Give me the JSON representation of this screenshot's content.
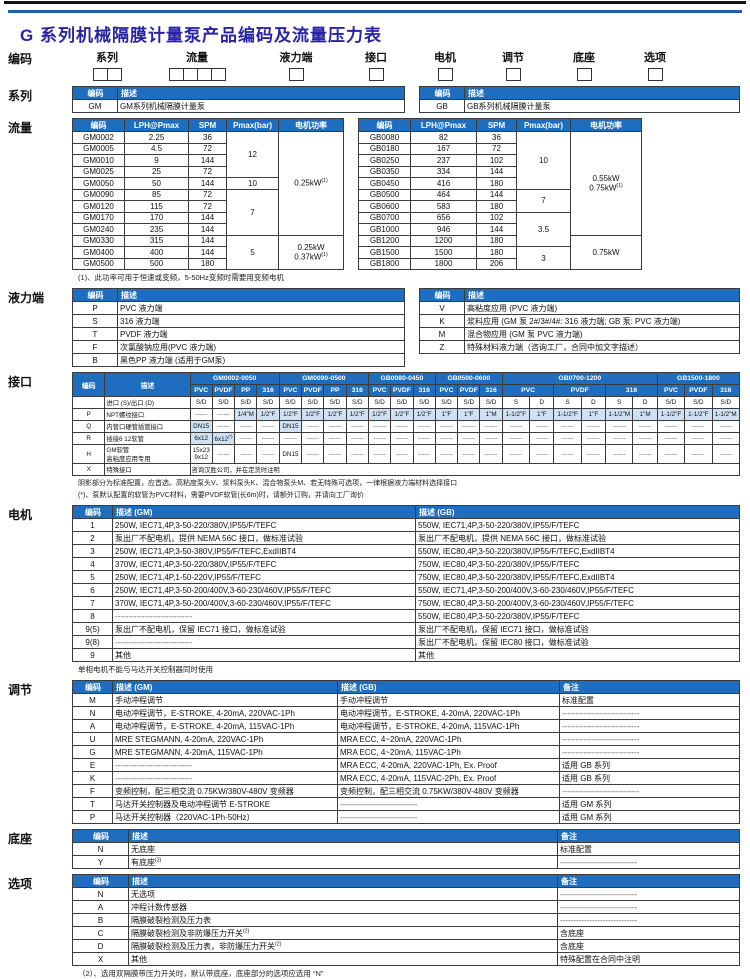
{
  "colors": {
    "header_blue": "#1E6DBF",
    "shade_blue": "#CFE2F4",
    "title_navy": "#2823A6",
    "rule_blue": "#1E5FAE"
  },
  "page": {
    "title": "G 系列机械隔膜计量泵产品编码及流量压力表",
    "top_code": {
      "label": "编码",
      "groups": [
        {
          "label": "系列",
          "boxes": 2
        },
        {
          "label": "流量",
          "boxes": 4
        },
        {
          "label": "液力端",
          "boxes": 1
        },
        {
          "label": "接口",
          "boxes": 1
        },
        {
          "label": "电机",
          "boxes": 1
        },
        {
          "label": "调节",
          "boxes": 1
        },
        {
          "label": "底座",
          "boxes": 1
        },
        {
          "label": "选项",
          "boxes": 1
        }
      ]
    }
  },
  "sections": {
    "series": {
      "label": "系列",
      "gm": {
        "head": [
          [
            "编码",
            "描述"
          ]
        ],
        "rows": [
          [
            "GM",
            "GM系列机械隔膜计量泵"
          ]
        ]
      },
      "gb": {
        "head": [
          [
            "编码",
            "描述"
          ]
        ],
        "rows": [
          [
            "GB",
            "GB系列机械隔膜计量泵"
          ]
        ]
      }
    },
    "flow": {
      "label": "流量",
      "note": "(1)、此功率可用于恒速或变频，5-50Hz变频时需要用变频电机",
      "gm": {
        "head": [
          [
            "编码",
            "LPH@Pmax",
            "SPM",
            "Pmax(bar)",
            "电机功率"
          ]
        ],
        "rows": [
          [
            "GM0002",
            "2.25",
            "36",
            {
              "t": "12",
              "rs": 4
            },
            {
              "t": "0.25kW",
              "sup": "(1)",
              "rs": 9
            }
          ],
          [
            "GM0005",
            "4.5",
            "72"
          ],
          [
            "GM0010",
            "9",
            "144"
          ],
          [
            "GM0025",
            "25",
            "72"
          ],
          [
            "GM0050",
            "50",
            "144",
            "10"
          ],
          [
            "GM0090",
            "85",
            "72",
            {
              "t": "7",
              "rs": 4
            }
          ],
          [
            "GM0120",
            "115",
            "72"
          ],
          [
            "GM0170",
            "170",
            "144"
          ],
          [
            "GM0240",
            "235",
            "144"
          ],
          [
            "GM0330",
            "315",
            "144",
            {
              "t": "5",
              "rs": 3
            },
            {
              "rs": 3,
              "lines": [
                {
                  "t": "0.25kW"
                },
                {
                  "t": "0.37kW",
                  "sup": "(1)"
                }
              ]
            }
          ],
          [
            "GM0400",
            "400",
            "144"
          ],
          [
            "GM0500",
            "500",
            "180"
          ]
        ]
      },
      "gb": {
        "head": [
          [
            "编码",
            "LPH@Pmax",
            "SPM",
            "Pmax(bar)",
            "电机功率"
          ]
        ],
        "rows": [
          [
            "GB0080",
            "82",
            "36",
            {
              "t": "10",
              "rs": 5
            },
            {
              "rs": 9,
              "lines": [
                {
                  "t": "0.55kW"
                },
                {
                  "t": "0.75kW",
                  "sup": "(1)"
                }
              ]
            }
          ],
          [
            "GB0180",
            "167",
            "72"
          ],
          [
            "GB0250",
            "237",
            "102"
          ],
          [
            "GB0350",
            "334",
            "144"
          ],
          [
            "GB0450",
            "416",
            "180"
          ],
          [
            "GB0500",
            "464",
            "144",
            {
              "t": "7",
              "rs": 2
            }
          ],
          [
            "GB0600",
            "583",
            "180"
          ],
          [
            "GB0700",
            "656",
            "102",
            {
              "t": "3.5",
              "rs": 3
            }
          ],
          [
            "GB1000",
            "946",
            "144"
          ],
          [
            "GB1200",
            "1200",
            "180",
            {
              "t": "0.75kW",
              "rs": 3
            }
          ],
          [
            "GB1500",
            "1500",
            "180",
            {
              "t": "3",
              "rs": 2
            }
          ],
          [
            "GB1800",
            "1800",
            "206"
          ]
        ]
      }
    },
    "hydraulic": {
      "label": "液力端",
      "gm": {
        "head": [
          [
            "编码",
            "描述"
          ]
        ],
        "rows": [
          [
            "P",
            "PVC 液力端"
          ],
          [
            "S",
            "316 液力端"
          ],
          [
            "T",
            "PVDF 液力端"
          ],
          [
            "F",
            "次氯酸钠应用(PVC 液力端)"
          ],
          [
            "B",
            "黑色PP 液力端 (适用于GM泵)"
          ]
        ]
      },
      "gb": {
        "head": [
          [
            "编码",
            "描述"
          ]
        ],
        "rows": [
          [
            "V",
            "高粘度应用 (PVC 液力端)"
          ],
          [
            "K",
            "浆料应用 (GM 泵 2#/3#/4#: 316 液力端; GB 泵: PVC 液力端)"
          ],
          [
            "M",
            "混合物应用 (GM 泵 PVC 液力端)"
          ],
          [
            "Z",
            "特殊材料液力端（咨询工厂，合同中加文字描述）"
          ]
        ]
      }
    },
    "interface": {
      "label": "接口",
      "note1": "阴影部分为标准配置，应首选。高粘度泵头V、浆料泵头K、混合物泵头M、若无特殊可选项，一律根据液力端材料选择接口",
      "note2": "(*)、泵默认配置的软管为PVC材料，需要PVDF软管(长6m)时，请额外订购，并请向工厂询价",
      "table": {
        "head": [
          [
            {
              "t": "编码",
              "rs": 2
            },
            {
              "t": "描述",
              "rs": 2
            },
            {
              "t": "GM0002-0050",
              "cs": 4
            },
            {
              "t": "GM0090-0500",
              "cs": 4
            },
            {
              "t": "GB0080-0450",
              "cs": 3
            },
            {
              "t": "GB0500-0600",
              "cs": 3
            },
            {
              "t": "GB0700-1200",
              "cs": 6
            },
            {
              "t": "GB1500-1800",
              "cs": 3
            }
          ],
          [
            "PVC",
            "PVDF",
            "PP",
            "316",
            "PVC",
            "PVDF",
            "PP",
            "316",
            "PVC",
            "PVDF",
            "316",
            "PVC",
            "PVDF",
            "316",
            {
              "t": "PVC",
              "cs": 2
            },
            {
              "t": "PVDF",
              "cs": 2
            },
            {
              "t": "316",
              "cs": 2
            },
            "PVC",
            "PVDF",
            "316"
          ]
        ],
        "rows": [
          [
            "",
            {
              "t": "进口 (S)/出口 (D)",
              "cls": "left"
            },
            "S/D",
            "S/D",
            "S/D",
            "S/D",
            "S/D",
            "S/D",
            "S/D",
            "S/D",
            "S/D",
            "S/D",
            "S/D",
            "S/D",
            "S/D",
            "S/D",
            "S",
            "D",
            "S",
            "D",
            "S",
            "D",
            "S/D",
            "S/D",
            "S/D"
          ],
          [
            "P",
            {
              "t": "NPT螺纹接口",
              "cls": "left"
            },
            "------",
            "------",
            {
              "t": "1/4\"M",
              "sh": 1
            },
            {
              "t": "1/2\"F",
              "sh": 1
            },
            {
              "t": "1/2\"F",
              "sh": 1
            },
            {
              "t": "1/2\"F",
              "sh": 1
            },
            {
              "t": "1/2\"F",
              "sh": 1
            },
            {
              "t": "1/2\"F",
              "sh": 1
            },
            {
              "t": "1/2\"F",
              "sh": 1
            },
            {
              "t": "1/2\"F",
              "sh": 1
            },
            {
              "t": "1/2\"F",
              "sh": 1
            },
            {
              "t": "1\"F",
              "sh": 1
            },
            {
              "t": "1\"F",
              "sh": 1
            },
            {
              "t": "1\"M",
              "sh": 1
            },
            {
              "t": "1-1/2\"F",
              "sh": 1
            },
            {
              "t": "1\"F",
              "sh": 1
            },
            {
              "t": "1-1/2\"F",
              "sh": 1
            },
            {
              "t": "1\"F",
              "sh": 1
            },
            {
              "t": "1-1/2\"M",
              "sh": 1
            },
            {
              "t": "1\"M",
              "sh": 1
            },
            {
              "t": "1-1/2\"F",
              "sh": 1
            },
            {
              "t": "1-1/2\"F",
              "sh": 1
            },
            {
              "t": "1-1/2\"M",
              "sh": 1
            }
          ],
          [
            "Q",
            {
              "t": "内管口硬管插管接口",
              "cls": "left"
            },
            {
              "t": "DN15",
              "sh": 1
            },
            "------",
            "------",
            "------",
            {
              "t": "DN15",
              "sh": 1
            },
            "------",
            "------",
            "------",
            "------",
            "------",
            "------",
            "------",
            "------",
            "------",
            "------",
            "------",
            "------",
            "------",
            "------",
            "------",
            "------",
            "------",
            "------"
          ],
          [
            "R",
            {
              "t": "插接6 12软管",
              "cls": "left"
            },
            {
              "t": "6x12",
              "sh": 1
            },
            {
              "t": "6x12",
              "sup": "(*)",
              "sh": 1
            },
            "------",
            "------",
            "------",
            "------",
            "------",
            "------",
            "------",
            "------",
            "------",
            "------",
            "------",
            "------",
            "------",
            "------",
            "------",
            "------",
            "------",
            "------",
            "------",
            "------",
            "------"
          ],
          [
            "H",
            {
              "cls": "left",
              "lines": [
                {
                  "t": "GM软管"
                },
                {
                  "t": "高粘度应用专用"
                }
              ]
            },
            {
              "lines": [
                {
                  "t": "15x23"
                },
                {
                  "t": "9x12"
                }
              ]
            },
            "------",
            "------",
            "------",
            "DN15",
            "------",
            "------",
            "------",
            "------",
            "------",
            "------",
            "------",
            "------",
            "------",
            "------",
            "------",
            "------",
            "------",
            "------",
            "------",
            "------",
            "------",
            "------"
          ],
          [
            "X",
            {
              "t": "特殊接口",
              "cls": "left"
            },
            {
              "t": "咨询汉胜公司，并在定货时注明",
              "cs": 23,
              "cls": "left"
            }
          ]
        ]
      }
    },
    "motor": {
      "label": "电机",
      "note": "单相电机不能与马达开关控制器同时使用",
      "table": {
        "head": [
          [
            "编码",
            "描述 (GM)",
            "描述 (GB)"
          ]
        ],
        "rows": [
          [
            "1",
            "250W, IEC71,4P,3-50-220/380V,IP55/F/TEFC",
            "550W, IEC71,4P,3-50-220/380V,IP55/F/TEFC"
          ],
          [
            "2",
            "泵出厂不配电机，提供 NEMA 56C 接口，做标准试验",
            "泵出厂不配电机，提供 NEMA 56C 接口，做标准试验"
          ],
          [
            "3",
            "250W, IEC71,4P,3-50-380V,IP55/F/TEFC,ExdIIBT4",
            "550W, IEC80,4P,3-50-220/380V,IP55/F/TEFC,ExdIIBT4"
          ],
          [
            "4",
            "370W, IEC71,4P,3-50-220/380V,IP55/F/TEFC",
            "750W, IEC80,4P,3-50-220/380V,IP55/F/TEFC"
          ],
          [
            "5",
            "250W, IEC71,4P,1-50-220V,IP55/F/TEFC",
            "750W, IEC80,4P,3-50-220/380V,IP55/F/TEFC,ExdIIBT4"
          ],
          [
            "6",
            "250W, IEC71,4P,3-50-200/400V,3-60-230/460V,IP55/F/TEFC",
            "550W, IEC71,4P,3-50-200/400V,3-60-230/460V,IP55/F/TEFC"
          ],
          [
            "7",
            "370W, IEC71,4P,3-50-200/400V,3-60-230/460V,IP55/F/TEFC",
            "750W, IEC80,4P,3-50-200/400V,3-60-230/460V,IP55/F/TEFC"
          ],
          [
            "8",
            "-----------------------------",
            "550W, IEC80,4P,3-50-220/380V,IP55/F/TEFC"
          ],
          [
            "9(5)",
            "泵出厂不配电机，保留 IEC71 接口，做标准试验",
            "泵出厂不配电机，保留 IEC71 接口，做标准试验"
          ],
          [
            "9(8)",
            "-----------------------------",
            "泵出厂不配电机，保留 IEC80 接口，做标准试验"
          ],
          [
            "9",
            "其他",
            "其他"
          ]
        ]
      }
    },
    "adjust": {
      "label": "调节",
      "table": {
        "head": [
          [
            "编码",
            "描述 (GM)",
            "描述 (GB)",
            "备注"
          ]
        ],
        "rows": [
          [
            "M",
            "手动冲程调节",
            "手动冲程调节",
            "标准配置"
          ],
          [
            "N",
            "电动冲程调节，E-STROKE, 4-20mA, 220VAC-1Ph",
            "电动冲程调节，E-STROKE, 4-20mA, 220VAC-1Ph",
            "-----------------------------"
          ],
          [
            "A",
            "电动冲程调节，E-STROKE, 4-20mA, 115VAC-1Ph",
            "电动冲程调节，E-STROKE, 4-20mA, 115VAC-1Ph",
            "-----------------------------"
          ],
          [
            "U",
            "MRE STEGMANN, 4-20mA, 220VAC-1Ph",
            "MRA ECC, 4~20mA, 220VAC-1Ph",
            "-----------------------------"
          ],
          [
            "G",
            "MRE STEGMANN, 4-20mA, 115VAC-1Ph",
            "MRA ECC, 4~20mA, 115VAC-1Ph",
            "-----------------------------"
          ],
          [
            "E",
            "-----------------------------",
            "MRA ECC, 4-20mA, 220VAC-1Ph, Ex. Proof",
            "适用 GB 系列"
          ],
          [
            "K",
            "-----------------------------",
            "MRA ECC, 4-20mA, 115VAC-2Ph, Ex. Proof",
            "适用 GB 系列"
          ],
          [
            "F",
            "变频控制，配三相交流 0.75KW/380V-480V 变频器",
            "变频控制，配三相交流 0.75KW/380V-480V 变频器",
            "-----------------------------"
          ],
          [
            "T",
            "马达开关控制器及电动冲程调节 E-STROKE",
            "-----------------------------",
            "适用 GM 系列"
          ],
          [
            "P",
            "马达开关控制器（220VAC-1Ph-50Hz）",
            "-----------------------------",
            "适用 GM 系列"
          ]
        ]
      }
    },
    "base": {
      "label": "底座",
      "table": {
        "head": [
          [
            "编码",
            "描述",
            "备注"
          ]
        ],
        "rows": [
          [
            "N",
            "无底座",
            "标准配置"
          ],
          [
            "Y",
            {
              "t": "有底座",
              "sup": "(2)"
            },
            "-----------------------------"
          ]
        ]
      }
    },
    "options": {
      "label": "选项",
      "note": "（2）、选用双隔膜带压力开关时，默认带底座，底座部分的选项应选用 “N”",
      "table": {
        "head": [
          [
            "编码",
            "描述",
            "备注"
          ]
        ],
        "rows": [
          [
            "N",
            "无选项",
            "-----------------------------"
          ],
          [
            "A",
            "冲程计数传感器",
            "-----------------------------"
          ],
          [
            "B",
            "隔膜破裂检测及压力表",
            "-----------------------------"
          ],
          [
            "C",
            {
              "t": "隔膜破裂检测及非防爆压力开关",
              "sup": "(2)"
            },
            "含底座"
          ],
          [
            "D",
            {
              "t": "隔膜破裂检测及压力表，非防爆压力开关",
              "sup": "(2)"
            },
            "含底座"
          ],
          [
            "X",
            "其他",
            "特殊配置在合同中注明"
          ]
        ]
      }
    }
  }
}
